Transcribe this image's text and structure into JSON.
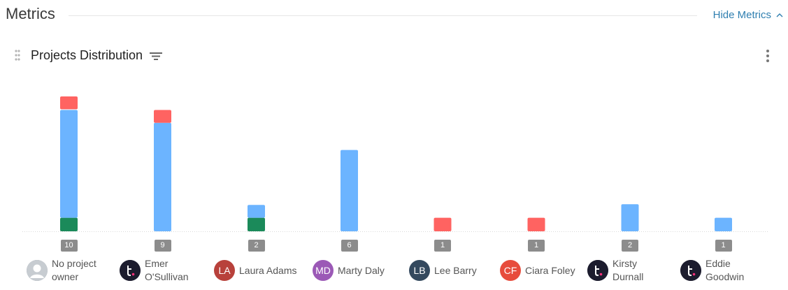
{
  "metrics": {
    "title": "Metrics",
    "toggle_label": "Hide Metrics"
  },
  "card": {
    "title": "Projects Distribution"
  },
  "colors": {
    "red": "#ff6361",
    "blue": "#6cb4ff",
    "green": "#1b8a5a",
    "badge": "#8c8c8c",
    "link": "#2f7fb0"
  },
  "chart_data": {
    "type": "bar",
    "stacked": true,
    "categories": [
      "No project owner",
      "Emer O'Sullivan",
      "Laura Adams",
      "Marty Daly",
      "Lee Barry",
      "Ciara Foley",
      "Kirsty Durnall",
      "Eddie Goodwin"
    ],
    "series": [
      {
        "color": "#1b8a5a",
        "values": [
          1,
          0,
          1,
          0,
          0,
          0,
          0,
          0
        ]
      },
      {
        "color": "#6cb4ff",
        "values": [
          8,
          8,
          1,
          6,
          0,
          0,
          2,
          1
        ]
      },
      {
        "color": "#ff6361",
        "values": [
          1,
          1,
          0,
          0,
          1,
          1,
          0,
          0
        ]
      }
    ],
    "totals": [
      "10",
      "9",
      "2",
      "6",
      "1",
      "1",
      "2",
      "1"
    ],
    "ylim": [
      0,
      10
    ],
    "grid": false
  },
  "owners": [
    {
      "name": "No project owner",
      "avatar_type": "placeholder",
      "avatar_color": "#9aa3ab",
      "initials": ""
    },
    {
      "name": "Emer O'Sullivan",
      "avatar_type": "logo",
      "avatar_color": "#1c1c2e",
      "initials": "t."
    },
    {
      "name": "Laura Adams",
      "avatar_type": "initials",
      "avatar_color": "#b8413b",
      "initials": "LA"
    },
    {
      "name": "Marty Daly",
      "avatar_type": "initials",
      "avatar_color": "#9b59b6",
      "initials": "MD"
    },
    {
      "name": "Lee Barry",
      "avatar_type": "initials",
      "avatar_color": "#34495e",
      "initials": "LB"
    },
    {
      "name": "Ciara Foley",
      "avatar_type": "initials",
      "avatar_color": "#e74c3c",
      "initials": "CF"
    },
    {
      "name": "Kirsty Durnall",
      "avatar_type": "logo",
      "avatar_color": "#1c1c2e",
      "initials": "t."
    },
    {
      "name": "Eddie Goodwin",
      "avatar_type": "logo",
      "avatar_color": "#1c1c2e",
      "initials": "t."
    }
  ],
  "icons": {
    "toggle": "chevron-up-icon",
    "drag": "drag-handle-icon",
    "filter": "filter-icon",
    "menu": "kebab-menu-icon"
  }
}
